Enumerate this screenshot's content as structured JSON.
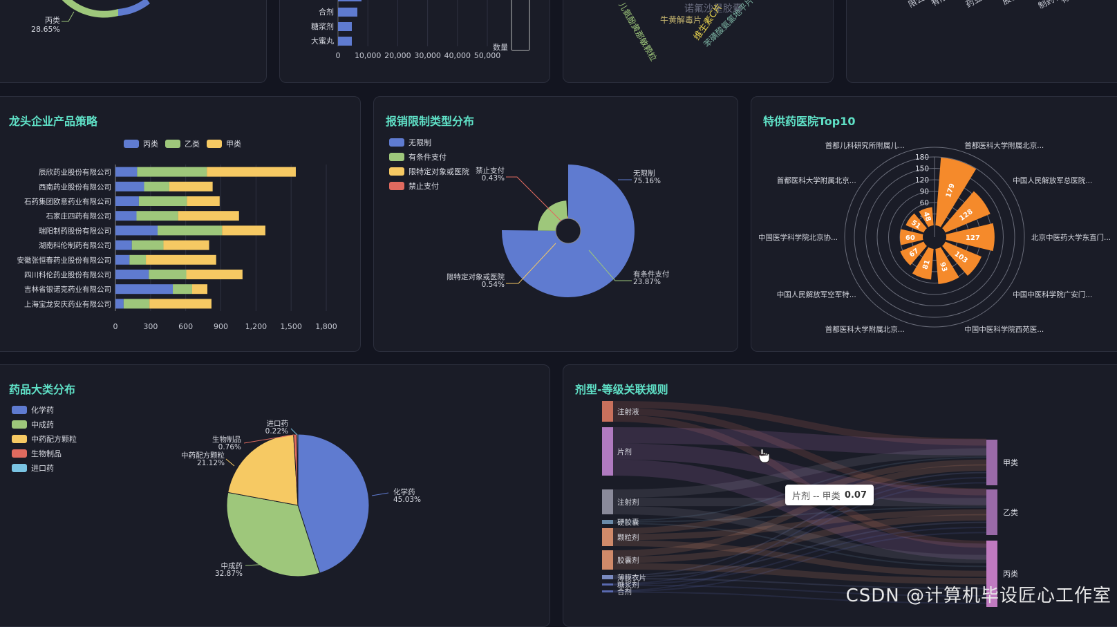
{
  "top_panels": {
    "ring_label": {
      "name": "丙类",
      "pct": "28.65%"
    },
    "bar_small": {
      "categories": [
        "合剂",
        "糖浆剂",
        "大蜜丸"
      ],
      "ticks": [
        "0",
        "10,000",
        "20,000",
        "30,000",
        "40,000",
        "50,000"
      ],
      "legend_label": "数量"
    },
    "wordcloud": [
      "诺氟沙星胶囊",
      "牛黄解毒片",
      "维生素C片",
      "儿氨酚黄那敏颗粒",
      "苯磺酸氨氯地平片"
    ],
    "company_words": [
      "限公司",
      "有限公司",
      "药业有限公司",
      "股份有限公司",
      "制药有限公司",
      "有限公司",
      "药有限公司",
      "份有限公司"
    ]
  },
  "panels": {
    "leader": {
      "title": "龙头企业产品策略"
    },
    "reimb": {
      "title": "报销限制类型分布"
    },
    "hospital": {
      "title": "特供药医院Top10"
    },
    "category": {
      "title": "药品大类分布"
    },
    "sankey": {
      "title": "剂型-等级关联规则"
    }
  },
  "chart_data": [
    {
      "id": "leader",
      "type": "bar",
      "orientation": "horizontal",
      "stacked": true,
      "categories": [
        "辰欣药业股份有限公司",
        "西南药业股份有限公司",
        "石药集团欧意药业有限公司",
        "石家庄四药有限公司",
        "瑞阳制药股份有限公司",
        "湖南科伦制药有限公司",
        "安徽张恒春药业股份有限公司",
        "四川科伦药业股份有限公司",
        "吉林省银诺克药业有限公司",
        "上海宝龙安庆药业有限公司"
      ],
      "series": [
        {
          "name": "丙类",
          "color": "#5f7bd0",
          "values": [
            185,
            245,
            200,
            180,
            360,
            140,
            120,
            285,
            490,
            70
          ]
        },
        {
          "name": "乙类",
          "color": "#9ec77b",
          "values": [
            595,
            215,
            410,
            355,
            550,
            270,
            140,
            320,
            165,
            220
          ]
        },
        {
          "name": "甲类",
          "color": "#f6c963",
          "values": [
            760,
            370,
            280,
            520,
            370,
            390,
            600,
            480,
            130,
            530
          ]
        }
      ],
      "xticks": [
        "0",
        "300",
        "600",
        "900",
        "1,200",
        "1,500",
        "1,800"
      ],
      "xlim": [
        0,
        1800
      ],
      "legend": "top"
    },
    {
      "id": "reimb",
      "type": "pie",
      "style": "rose",
      "legend": "top-left",
      "slices": [
        {
          "name": "无限制",
          "value": 75.16,
          "label": "75.16%",
          "color": "#5f7bd0"
        },
        {
          "name": "有条件支付",
          "value": 23.87,
          "label": "23.87%",
          "color": "#9ec77b"
        },
        {
          "name": "限特定对象或医院",
          "value": 0.54,
          "label": "0.54%",
          "color": "#f6c963"
        },
        {
          "name": "禁止支付",
          "value": 0.43,
          "label": "0.43%",
          "color": "#e06a5f"
        }
      ]
    },
    {
      "id": "hospital",
      "type": "bar",
      "style": "polar",
      "color": "#f58a2b",
      "categories": [
        "首都医科大学附属北京...",
        "中国人民解放军总医院...",
        "北京中医药大学东直门...",
        "中国中医科学院广安门...",
        "中国中医科学院西苑医...",
        "首都医科大学附属北京...",
        "中国人民解放军空军特...",
        "中国医学科学院北京协...",
        "首都医科大学附属北京...",
        "首都儿科研究所附属儿..."
      ],
      "values": [
        179,
        128,
        127,
        103,
        93,
        81,
        67,
        60,
        51,
        48
      ],
      "radial_ticks": [
        "30",
        "60",
        "90",
        "120",
        "150",
        "180"
      ],
      "rlim": [
        0,
        180
      ]
    },
    {
      "id": "category",
      "type": "pie",
      "legend": "top-left",
      "slices": [
        {
          "name": "化学药",
          "value": 45.03,
          "label": "45.03%",
          "color": "#5f7bd0"
        },
        {
          "name": "中成药",
          "value": 32.87,
          "label": "32.87%",
          "color": "#9ec77b"
        },
        {
          "name": "中药配方颗粒",
          "value": 21.12,
          "label": "21.12%",
          "color": "#f6c963"
        },
        {
          "name": "生物制品",
          "value": 0.76,
          "label": "0.76%",
          "color": "#e06a5f"
        },
        {
          "name": "进口药",
          "value": 0.22,
          "label": "0.22%",
          "color": "#7ac4e3"
        }
      ]
    },
    {
      "id": "sankey",
      "type": "sankey",
      "sources": [
        {
          "name": "注射液",
          "color": "#c8705c",
          "weight": 30
        },
        {
          "name": "片剂",
          "color": "#b07ac0",
          "weight": 68
        },
        {
          "name": "注射剂",
          "color": "#8a8a9a",
          "weight": 36
        },
        {
          "name": "硬胶囊",
          "color": "#6a8aa8",
          "weight": 6
        },
        {
          "name": "颗粒剂",
          "color": "#d08a6a",
          "weight": 26
        },
        {
          "name": "胶囊剂",
          "color": "#d08a6a",
          "weight": 26
        },
        {
          "name": "薄膜衣片",
          "color": "#7a8ac0",
          "weight": 6
        },
        {
          "name": "糖浆剂",
          "color": "#5a6ab0",
          "weight": 3
        },
        {
          "name": "合剂",
          "color": "#5a6ab0",
          "weight": 3
        }
      ],
      "targets": [
        {
          "name": "甲类",
          "color": "#9a6aa8"
        },
        {
          "name": "乙类",
          "color": "#9a6aa8"
        },
        {
          "name": "丙类",
          "color": "#c07ac0"
        }
      ],
      "tooltip": {
        "label": "片剂 -- 甲类",
        "value": "0.07"
      }
    }
  ],
  "watermark": "CSDN @计算机毕设匠心工作室"
}
